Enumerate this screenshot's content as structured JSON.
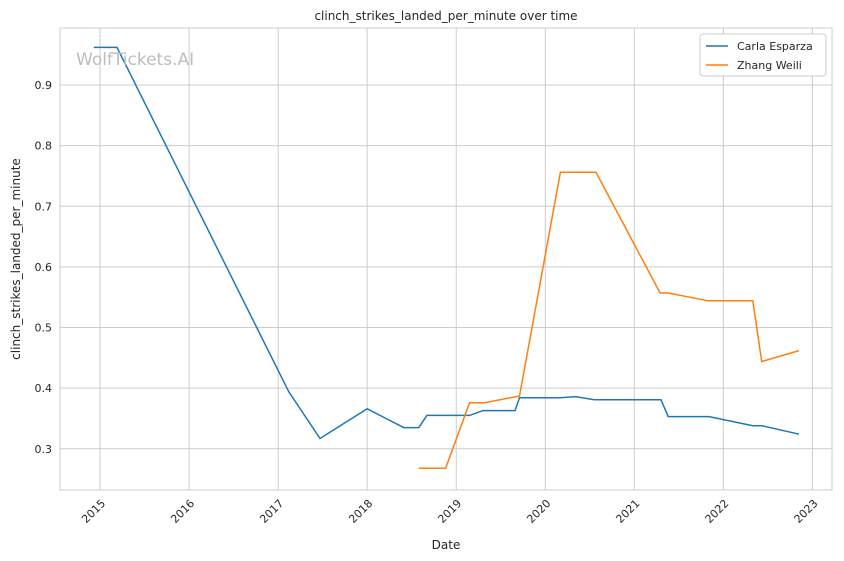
{
  "watermark": "WolfTickets.AI",
  "chart_data": {
    "type": "line",
    "title": "clinch_strikes_landed_per_minute over time",
    "xlabel": "Date",
    "ylabel": "clinch_strikes_landed_per_minute",
    "xlim": [
      2014.55,
      2023.22
    ],
    "ylim": [
      0.232,
      0.994
    ],
    "xticks": [
      2015,
      2016,
      2017,
      2018,
      2019,
      2020,
      2021,
      2022,
      2023
    ],
    "xtick_labels": [
      "2015",
      "2016",
      "2017",
      "2018",
      "2019",
      "2020",
      "2021",
      "2022",
      "2023"
    ],
    "yticks": [
      0.3,
      0.4,
      0.5,
      0.6,
      0.7,
      0.8,
      0.9
    ],
    "ytick_labels": [
      "0.3",
      "0.4",
      "0.5",
      "0.6",
      "0.7",
      "0.8",
      "0.9"
    ],
    "grid": true,
    "legend_position": "top-right",
    "series": [
      {
        "name": "Carla Esparza",
        "color": "#1f77b4",
        "x": [
          2014.93,
          2015.19,
          2017.12,
          2017.47,
          2018.0,
          2018.41,
          2018.58,
          2018.67,
          2019.15,
          2019.3,
          2019.66,
          2019.71,
          2020.17,
          2020.34,
          2020.55,
          2021.3,
          2021.38,
          2021.84,
          2022.33,
          2022.43,
          2022.85
        ],
        "y": [
          0.962,
          0.962,
          0.394,
          0.317,
          0.366,
          0.335,
          0.335,
          0.355,
          0.355,
          0.363,
          0.363,
          0.384,
          0.384,
          0.386,
          0.381,
          0.381,
          0.353,
          0.353,
          0.338,
          0.338,
          0.324
        ]
      },
      {
        "name": "Zhang Weili",
        "color": "#ff7f0e",
        "x": [
          2018.58,
          2018.88,
          2019.15,
          2019.32,
          2019.71,
          2020.17,
          2020.57,
          2021.29,
          2021.38,
          2021.83,
          2022.33,
          2022.43,
          2022.85
        ],
        "y": [
          0.268,
          0.268,
          0.376,
          0.376,
          0.387,
          0.756,
          0.756,
          0.557,
          0.557,
          0.544,
          0.544,
          0.444,
          0.462
        ]
      }
    ]
  }
}
